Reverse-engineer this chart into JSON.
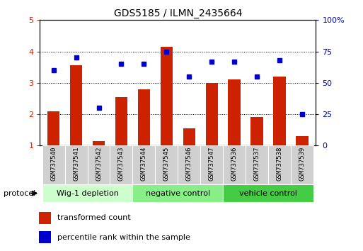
{
  "title": "GDS5185 / ILMN_2435664",
  "samples": [
    "GSM737540",
    "GSM737541",
    "GSM737542",
    "GSM737543",
    "GSM737544",
    "GSM737545",
    "GSM737546",
    "GSM737547",
    "GSM737536",
    "GSM737537",
    "GSM737538",
    "GSM737539"
  ],
  "bar_values": [
    2.1,
    3.55,
    1.15,
    2.55,
    2.8,
    4.15,
    1.55,
    3.0,
    3.1,
    1.9,
    3.2,
    1.3
  ],
  "dot_values": [
    60,
    70,
    30,
    65,
    65,
    75,
    55,
    67,
    67,
    55,
    68,
    25
  ],
  "bar_color": "#cc2200",
  "dot_color": "#0000cc",
  "ylim_left": [
    1,
    5
  ],
  "ylim_right": [
    0,
    100
  ],
  "yticks_left": [
    1,
    2,
    3,
    4,
    5
  ],
  "ytick_labels_left": [
    "1",
    "2",
    "3",
    "4",
    "5"
  ],
  "yticks_right": [
    0,
    25,
    50,
    75,
    100
  ],
  "ytick_labels_right": [
    "0",
    "25",
    "50",
    "75",
    "100%"
  ],
  "groups": [
    {
      "label": "Wig-1 depletion",
      "start": 0,
      "end": 3,
      "color": "#ccffcc"
    },
    {
      "label": "negative control",
      "start": 4,
      "end": 7,
      "color": "#88ee88"
    },
    {
      "label": "vehicle control",
      "start": 8,
      "end": 11,
      "color": "#44cc44"
    }
  ],
  "protocol_label": "protocol",
  "legend_bar_label": "transformed count",
  "legend_dot_label": "percentile rank within the sample",
  "plot_bg": "#ffffff",
  "bar_width": 0.55,
  "tick_bg": "#cccccc"
}
